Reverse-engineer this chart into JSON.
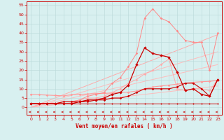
{
  "x": [
    0,
    1,
    2,
    3,
    4,
    5,
    6,
    7,
    8,
    9,
    10,
    11,
    12,
    13,
    14,
    15,
    16,
    17,
    18,
    19,
    20,
    21,
    22,
    23
  ],
  "series": [
    {
      "y": [
        0,
        0.5,
        1,
        1.5,
        2,
        2.5,
        3,
        3.5,
        4,
        4.5,
        5,
        5.5,
        6,
        6.5,
        7,
        7.5,
        8,
        8.5,
        9,
        9.5,
        10,
        10.5,
        11,
        11.5
      ],
      "color": "#ffbbbb",
      "marker": null,
      "linewidth": 0.7,
      "zorder": 1
    },
    {
      "y": [
        0,
        1,
        2,
        3,
        4,
        5,
        6,
        7,
        8,
        9,
        10,
        11,
        12,
        13,
        14,
        15,
        16,
        17,
        18,
        19,
        20,
        21,
        22,
        23
      ],
      "color": "#ffbbbb",
      "marker": null,
      "linewidth": 0.7,
      "zorder": 1
    },
    {
      "y": [
        0,
        1.3,
        2.6,
        3.9,
        5.2,
        6.5,
        7.8,
        9.1,
        10.4,
        11.7,
        13,
        14.3,
        15.6,
        16.9,
        18.2,
        19.5,
        20.8,
        22.1,
        23.4,
        24.7,
        26,
        27.3,
        28.6,
        29.9
      ],
      "color": "#ffbbbb",
      "marker": null,
      "linewidth": 0.7,
      "zorder": 1
    },
    {
      "y": [
        0,
        1.7,
        3.4,
        5.1,
        6.8,
        8.5,
        10.2,
        11.9,
        13.6,
        15.3,
        17,
        18.7,
        20.4,
        22.1,
        23.8,
        25.5,
        27.2,
        28.9,
        30.6,
        32.3,
        34,
        35.7,
        37.4,
        39.1
      ],
      "color": "#ffaaaa",
      "marker": null,
      "linewidth": 0.7,
      "zorder": 1
    },
    {
      "y": [
        7,
        6.8,
        6.6,
        6.4,
        6.2,
        6.8,
        7.0,
        7.2,
        7.4,
        7.5,
        7.8,
        8.0,
        8.2,
        8.8,
        10,
        11,
        11.5,
        12,
        12.5,
        13,
        13.5,
        13.8,
        14,
        14.5
      ],
      "color": "#ff9999",
      "marker": "D",
      "markersize": 1.8,
      "linewidth": 0.8,
      "zorder": 2
    },
    {
      "y": [
        2,
        2,
        2,
        2,
        3,
        3,
        4,
        5,
        5,
        6,
        8,
        10,
        13,
        15,
        18,
        20,
        23,
        26,
        10,
        9,
        10,
        10,
        9,
        15
      ],
      "color": "#ffaaaa",
      "marker": "D",
      "markersize": 1.8,
      "linewidth": 0.7,
      "zorder": 2
    },
    {
      "y": [
        2,
        2,
        2,
        2,
        3,
        3,
        4,
        6,
        7,
        8,
        13,
        16,
        22,
        29,
        48,
        53,
        48,
        46,
        41,
        36,
        35,
        35,
        20,
        40
      ],
      "color": "#ff8888",
      "marker": "D",
      "markersize": 1.8,
      "linewidth": 0.7,
      "zorder": 2
    },
    {
      "y": [
        2,
        2,
        2,
        2,
        2,
        2,
        3,
        4,
        4,
        5,
        7,
        8,
        12,
        23,
        32,
        29,
        28,
        27,
        19,
        9,
        10,
        7,
        6,
        15
      ],
      "color": "#cc0000",
      "marker": "D",
      "markersize": 2.2,
      "linewidth": 0.9,
      "zorder": 4
    },
    {
      "y": [
        2,
        2,
        2,
        2,
        3,
        3,
        3,
        3,
        4,
        4,
        5,
        5,
        6,
        8,
        10,
        10,
        10,
        10,
        11,
        13,
        13,
        10,
        6,
        15
      ],
      "color": "#cc0000",
      "marker": "D",
      "markersize": 1.8,
      "linewidth": 0.8,
      "zorder": 3
    },
    {
      "y": [
        2,
        2,
        2,
        2,
        2,
        2,
        2,
        2,
        2,
        2,
        2,
        2,
        2,
        2,
        2,
        2,
        2,
        2,
        2,
        2,
        2,
        2,
        2,
        2
      ],
      "color": "#cc0000",
      "marker": "o",
      "markersize": 1.5,
      "linewidth": 0.7,
      "zorder": 3
    }
  ],
  "xlabel": "Vent moyen/en rafales ( km/h )",
  "xlim": [
    -0.5,
    23.5
  ],
  "ylim": [
    -4,
    57
  ],
  "yticks": [
    0,
    5,
    10,
    15,
    20,
    25,
    30,
    35,
    40,
    45,
    50,
    55
  ],
  "xticks": [
    0,
    1,
    2,
    3,
    4,
    5,
    6,
    7,
    8,
    9,
    10,
    11,
    12,
    13,
    14,
    15,
    16,
    17,
    18,
    19,
    20,
    21,
    22,
    23
  ],
  "background_color": "#d8f0f0",
  "grid_color": "#b8d8d8",
  "axis_color": "#cc0000",
  "tick_color": "#cc0000"
}
